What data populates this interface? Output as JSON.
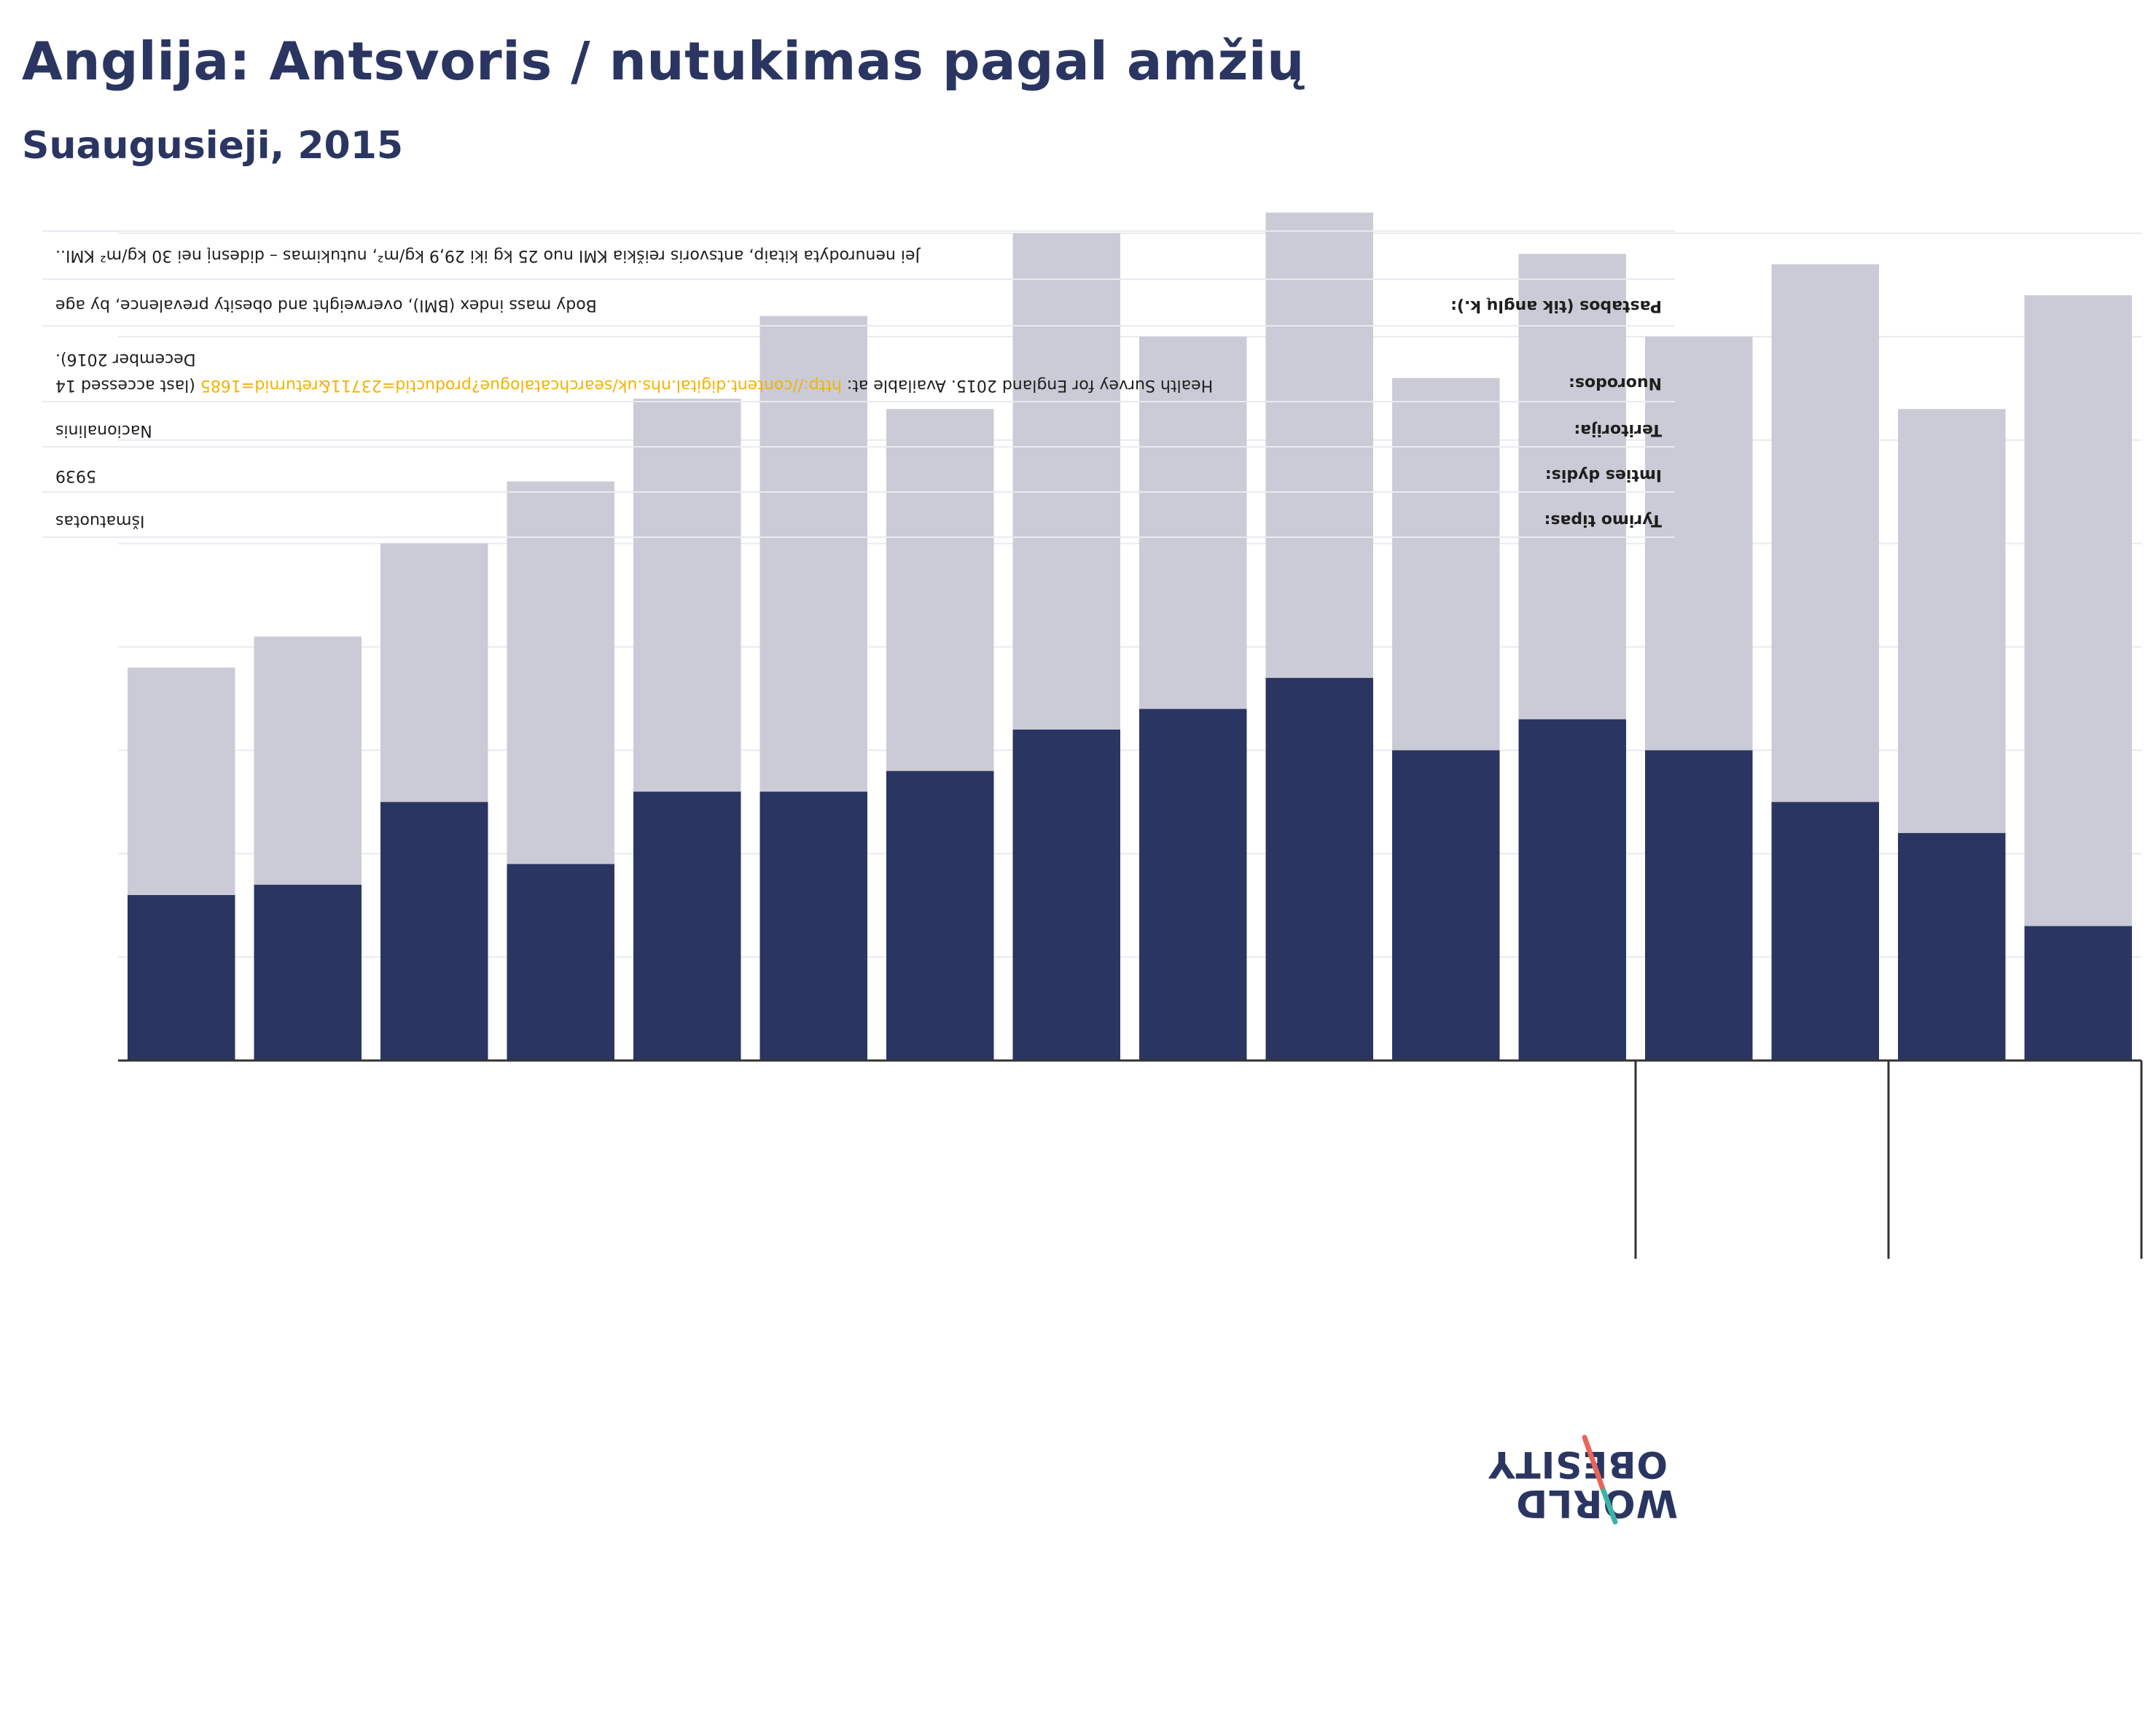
{
  "title": "Anglija: Antsvoris / nutukimas pagal amžių",
  "subtitle": "Suaugusieji, 2015",
  "colors": {
    "obesity": "#2a3561",
    "overweight": "#cacbd6",
    "grid": "#e8eaf0",
    "axis": "#333333",
    "link": "#f2b300"
  },
  "info_table": {
    "rows": [
      {
        "label": "Tyrimo tipas:",
        "value": "Išmatuotas"
      },
      {
        "label": "Imties dydis:",
        "value": "5939"
      },
      {
        "label": "Teritorija:",
        "value": "Nacionalinis"
      },
      {
        "label": "Nuorodos:",
        "value_prefix": "Health Survey for England 2015. Available at:",
        "link": "http://content.digital.nhs.uk/searchcatalogue?productid=23711&returnid=1685",
        "value_suffix": "(last accessed 14 December 2016)."
      },
      {
        "label": "Pastabos (tik anglų k.):",
        "value": "Body mass index (BMI), overweight and obesity prevalence, by age"
      },
      {
        "label": "",
        "value": "Jei nenurodyta kitaip, antsvoris reiškia KMI nuo 25 kg iki 29,9 kg/m², nutukimas – didesnį nei 30 kg/m² KMI.."
      }
    ]
  },
  "logo": {
    "line1": "OBESITY",
    "line2": "WORLD"
  },
  "chart_data": {
    "type": "bar",
    "stacked": true,
    "categories": [
      "",
      "",
      "",
      "",
      "",
      "",
      "",
      "",
      "",
      "",
      "",
      "",
      "",
      "",
      "",
      ""
    ],
    "series": [
      {
        "values": [
          16,
          17,
          25,
          19,
          26,
          26,
          28,
          32,
          34,
          37,
          30,
          33,
          30,
          25,
          22,
          13
        ]
      },
      {
        "values": [
          22,
          24,
          25,
          37,
          38,
          46,
          35,
          48,
          36,
          45,
          36,
          45,
          40,
          52,
          41,
          61
        ]
      }
    ],
    "ylim": [
      0,
      80
    ],
    "grid": true,
    "group_separators_after_index": [
      11,
      13,
      15
    ]
  }
}
